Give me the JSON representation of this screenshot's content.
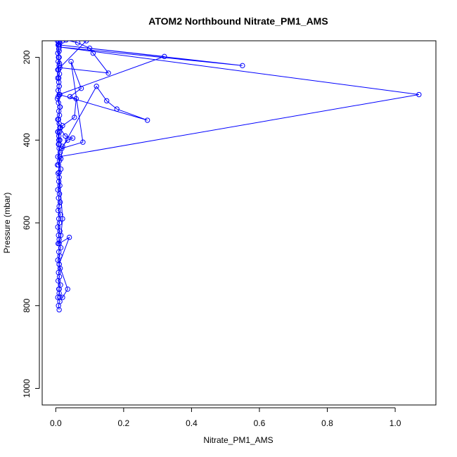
{
  "chart_data": {
    "type": "line",
    "title": "ATOM2 Northbound Nitrate_PM1_AMS",
    "xlabel": "Nitrate_PM1_AMS",
    "ylabel": "Pressure (mbar)",
    "xlim": [
      -0.04,
      1.12
    ],
    "ylim": [
      1040,
      160
    ],
    "y_reversed": true,
    "x_ticks": [
      0.0,
      0.2,
      0.4,
      0.6,
      0.8,
      1.0
    ],
    "x_tick_labels": [
      "0.0",
      "0.2",
      "0.4",
      "0.6",
      "0.8",
      "1.0"
    ],
    "y_ticks": [
      200,
      400,
      600,
      800,
      1000
    ],
    "y_tick_labels": [
      "200",
      "400",
      "600",
      "800",
      "1000"
    ],
    "grid": false,
    "legend": "none",
    "marker": "open-circle",
    "color": "#0000ff",
    "series": [
      {
        "x": [
          0.01,
          0.008,
          0.012,
          0.006,
          0.01,
          0.009,
          0.014,
          0.007,
          0.011,
          0.008,
          0.013,
          0.01,
          0.006,
          0.012,
          0.009,
          0.015,
          0.007,
          0.01,
          0.008,
          0.012,
          0.006,
          0.011,
          0.009,
          0.014,
          0.007,
          0.01,
          0.013,
          0.008,
          0.011,
          0.006,
          0.012,
          0.009,
          0.01,
          0.007,
          0.015,
          0.008,
          0.011,
          0.006,
          0.013,
          0.01,
          0.008,
          0.012,
          0.009,
          0.007,
          0.014,
          0.01,
          0.006,
          0.011,
          0.009,
          0.013,
          0.008,
          0.005,
          0.012,
          0.007,
          0.01,
          0.009,
          0.006,
          0.011,
          0.008,
          0.01,
          0.007,
          0.01,
          0.006,
          0.009,
          0.008,
          0.012,
          0.005,
          0.009,
          0.007,
          0.01,
          0.008,
          0.011,
          0.006,
          0.009,
          0.01,
          0.007,
          0.012,
          0.008,
          0.006,
          0.01
        ],
        "y": [
          810,
          800,
          790,
          780,
          770,
          760,
          750,
          740,
          730,
          720,
          710,
          700,
          690,
          680,
          670,
          660,
          650,
          640,
          630,
          620,
          610,
          600,
          590,
          580,
          570,
          560,
          550,
          540,
          530,
          520,
          510,
          500,
          490,
          480,
          470,
          460,
          450,
          440,
          430,
          420,
          410,
          400,
          390,
          380,
          370,
          360,
          350,
          340,
          330,
          320,
          310,
          300,
          290,
          280,
          270,
          260,
          250,
          240,
          230,
          220,
          210,
          200,
          190,
          180,
          170,
          165,
          160,
          162,
          170,
          185,
          200,
          215,
          230,
          250,
          270,
          295,
          320,
          350,
          380,
          410
        ]
      },
      {
        "x": [
          0.005,
          0.015,
          0.02,
          0.035,
          0.05,
          0.028,
          0.012,
          0.02,
          0.055,
          0.06,
          0.042,
          0.075,
          0.045,
          0.08,
          0.018,
          0.12,
          0.15,
          0.18,
          0.27,
          0.01,
          0.32,
          0.01,
          0.55,
          0.01,
          1.07,
          0.012,
          0.01,
          0.02,
          0.015,
          0.01,
          0.04,
          0.01,
          0.035,
          0.02,
          0.012,
          0.01,
          0.009,
          0.011
        ],
        "y": [
          460,
          445,
          415,
          400,
          395,
          390,
          370,
          365,
          345,
          300,
          295,
          275,
          210,
          405,
          420,
          270,
          305,
          325,
          352,
          290,
          198,
          170,
          220,
          175,
          290,
          440,
          478,
          590,
          630,
          650,
          635,
          700,
          760,
          780,
          780,
          760,
          400,
          380
        ]
      },
      {
        "x": [
          0.015,
          0.03,
          0.065,
          0.1,
          0.11,
          0.155,
          0.012,
          0.09,
          0.01,
          0.008,
          0.012,
          0.02
        ],
        "y": [
          155,
          158,
          165,
          178,
          190,
          238,
          225,
          160,
          150,
          155,
          150,
          160
        ]
      }
    ]
  }
}
